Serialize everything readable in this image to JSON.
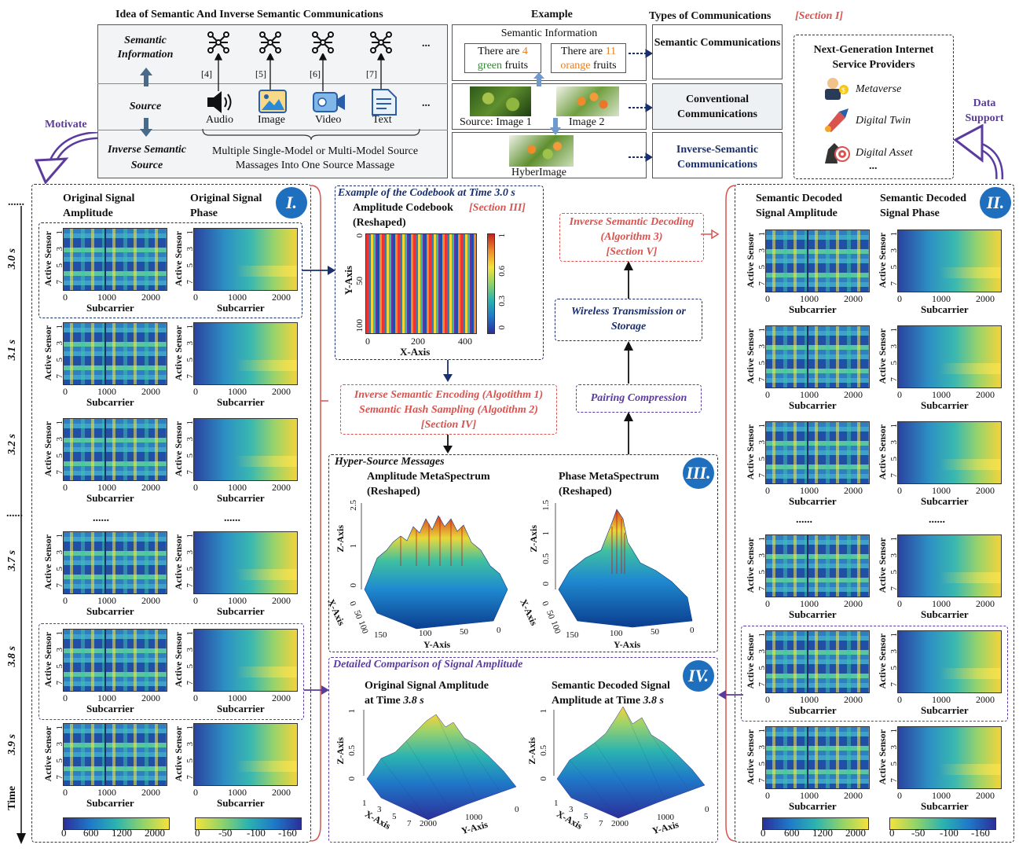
{
  "top": {
    "idea_title": "Idea of Semantic And Inverse Semantic Communications",
    "example_title": "Example",
    "types_title": "Types of Communications",
    "section_i": "[Section I]",
    "semantic_information": "Semantic Information",
    "source": "Source",
    "inverse_semantic_source": "Inverse Semantic Source",
    "refs": [
      "[4]",
      "[5]",
      "[6]",
      "[7]"
    ],
    "ellipsis": "...",
    "media": [
      "Audio",
      "Image",
      "Video",
      "Text"
    ],
    "merge_text_1": "Multiple Single-Model or Multi-Model Source",
    "merge_text_2": "Massages Into One Source Massage",
    "ex_semantic_info": "Semantic Information",
    "ex_fruit_1a": "There are",
    "ex_fruit_1n": "4",
    "ex_fruit_1c": "green",
    "ex_fruit_1d": "fruits",
    "ex_fruit_2a": "There are",
    "ex_fruit_2n": "11",
    "ex_fruit_2c": "orange",
    "ex_fruit_2d": "fruits",
    "ex_source_image1": "Source: Image 1",
    "ex_image2": "Image 2",
    "ex_hyberimage": "HyberImage",
    "type_semantic": "Semantic Communications",
    "type_conventional": "Conventional Communications",
    "type_inverse": "Inverse-Semantic Communications",
    "ngisp_title": "Next-Generation Internet Service Providers",
    "ngisp_items": [
      "Metaverse",
      "Digital Twin",
      "Digital Asset"
    ],
    "ngisp_more": "...",
    "motivate": "Motivate",
    "data_support": "Data Support"
  },
  "left_panel": {
    "num": "I.",
    "col1": "Original Signal Amplitude",
    "col2": "Original Signal Phase",
    "times": [
      "3.0 s",
      "3.1 s",
      "3.2 s",
      "3.7 s",
      "3.8 s",
      "3.9 s"
    ],
    "time_dots": "......",
    "time_label": "Time",
    "ylabel": "Active Sensor",
    "xlabel": "Subcarrier",
    "yticks": [
      "1",
      "3",
      "5",
      "7"
    ],
    "xticks": [
      "0",
      "1000",
      "2000"
    ],
    "dots": "......",
    "cbar_amp": [
      "0",
      "600",
      "1200",
      "2000"
    ],
    "cbar_phase": [
      "0",
      "-50",
      "-100",
      "-160"
    ]
  },
  "right_panel": {
    "num": "II.",
    "col1": "Semantic Decoded Signal Amplitude",
    "col2": "Semantic Decoded Signal Phase",
    "ylabel": "Active Sensor",
    "xlabel": "Subcarrier",
    "yticks": [
      "1",
      "3",
      "5",
      "7"
    ],
    "xticks": [
      "0",
      "1000",
      "2000"
    ],
    "dots": "......",
    "cbar_amp": [
      "0",
      "600",
      "1200",
      "2000"
    ],
    "cbar_phase": [
      "0",
      "-50",
      "-100",
      "-160"
    ]
  },
  "codebook": {
    "title": "Example of the Codebook at Time 3.0 s",
    "subtitle": "Amplitude Codebook",
    "section": "[Section III]",
    "reshaped": "(Reshaped)",
    "ylabel": "Y-Axis",
    "xlabel": "X-Axis",
    "yticks": [
      "0",
      "50",
      "100"
    ],
    "xticks": [
      "0",
      "200",
      "400"
    ],
    "cticks": [
      "1",
      "0.6",
      "0.3",
      "0"
    ]
  },
  "flow": {
    "decoding_1": "Inverse Semantic Decoding",
    "decoding_2": "(Algorithm 3)",
    "decoding_3": "[Section V]",
    "wireless_1": "Wireless Transmission or",
    "wireless_2": "Storage",
    "pairing": "Pairing Compression",
    "encoding_1": "Inverse Semantic Encoding (Algotithm 1)",
    "encoding_2": "Semantic Hash Sampling (Algotithm 2)",
    "encoding_3": "[Section IV]"
  },
  "panel_iii": {
    "num": "III.",
    "title": "Hyper-Source Messages",
    "amp_title": "Amplitude MetaSpectrum",
    "phase_title": "Phase MetaSpectrum",
    "reshaped": "(Reshaped)",
    "zlabel": "Z-Axis",
    "xlabel": "X-Axis",
    "ylabel": "Y-Axis",
    "amp_zticks": [
      "2.5",
      "1",
      "0"
    ],
    "phase_zticks": [
      "1.5",
      "1",
      "0.5",
      "0"
    ],
    "xticks": [
      "0",
      "50",
      "100"
    ],
    "yticks": [
      "150",
      "100",
      "50",
      "0"
    ]
  },
  "panel_iv": {
    "num": "IV.",
    "title": "Detailed Comparison of Signal Amplitude",
    "orig_title_1": "Original Signal Amplitude",
    "orig_title_2": "at Time",
    "orig_time": "3.8 s",
    "dec_title_1": "Semantic Decoded Signal",
    "dec_title_2": "Amplitude at Time",
    "dec_time": "3.8 s",
    "zlabel": "Z-Axis",
    "xlabel": "X-Axis",
    "ylabel": "Y-Axis",
    "zticks": [
      "1",
      "0.5",
      "0"
    ],
    "xticks": [
      "1",
      "3",
      "5",
      "7"
    ],
    "yticks": [
      "2000",
      "1000",
      "0"
    ]
  }
}
